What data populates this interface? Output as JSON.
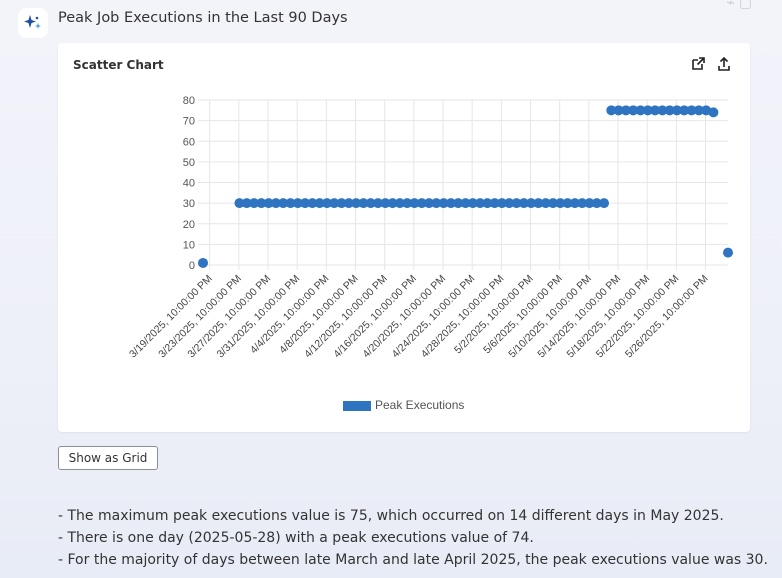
{
  "message": {
    "title": "Peak Job Executions in the Last 90 Days",
    "avatar_icon": "sparkle-icon"
  },
  "card": {
    "title": "Scatter Chart",
    "actions": [
      "open-external-icon",
      "share-upload-icon"
    ]
  },
  "show_grid_label": "Show as Grid",
  "notes": [
    "- The maximum peak executions value is 75, which occurred on 14 different days in May 2025.",
    "- There is one day (2025-05-28) with a peak executions value of 74.",
    "- For the majority of days between late March and late April 2025, the peak executions value was 30."
  ],
  "colors": {
    "point": "#2f74c0",
    "grid": "#e6e6e6",
    "accent": "#2b6cb0"
  },
  "chart_data": {
    "type": "scatter",
    "ylim": [
      0,
      80
    ],
    "yticks": [
      0,
      10,
      20,
      30,
      40,
      50,
      60,
      70,
      80
    ],
    "xlim": [
      "2025-03-19",
      "2025-05-30"
    ],
    "xtick_labels": [
      "3/19/2025, 10:00:00 PM",
      "3/23/2025, 10:00:00 PM",
      "3/27/2025, 10:00:00 PM",
      "3/31/2025, 10:00:00 PM",
      "4/4/2025, 10:00:00 PM",
      "4/8/2025, 10:00:00 PM",
      "4/12/2025, 10:00:00 PM",
      "4/16/2025, 10:00:00 PM",
      "4/20/2025, 10:00:00 PM",
      "4/24/2025, 10:00:00 PM",
      "4/28/2025, 10:00:00 PM",
      "5/2/2025, 10:00:00 PM",
      "5/6/2025, 10:00:00 PM",
      "5/10/2025, 10:00:00 PM",
      "5/14/2025, 10:00:00 PM",
      "5/18/2025, 10:00:00 PM",
      "5/22/2025, 10:00:00 PM",
      "5/26/2025, 10:00:00 PM"
    ],
    "legend": "bottom",
    "series": [
      {
        "name": "Peak Executions",
        "points": [
          {
            "x": "2025-03-19",
            "y": 1
          },
          {
            "x": "2025-03-24",
            "y": 30
          },
          {
            "x": "2025-03-25",
            "y": 30
          },
          {
            "x": "2025-03-26",
            "y": 30
          },
          {
            "x": "2025-03-27",
            "y": 30
          },
          {
            "x": "2025-03-28",
            "y": 30
          },
          {
            "x": "2025-03-29",
            "y": 30
          },
          {
            "x": "2025-03-30",
            "y": 30
          },
          {
            "x": "2025-03-31",
            "y": 30
          },
          {
            "x": "2025-04-01",
            "y": 30
          },
          {
            "x": "2025-04-02",
            "y": 30
          },
          {
            "x": "2025-04-03",
            "y": 30
          },
          {
            "x": "2025-04-04",
            "y": 30
          },
          {
            "x": "2025-04-05",
            "y": 30
          },
          {
            "x": "2025-04-06",
            "y": 30
          },
          {
            "x": "2025-04-07",
            "y": 30
          },
          {
            "x": "2025-04-08",
            "y": 30
          },
          {
            "x": "2025-04-09",
            "y": 30
          },
          {
            "x": "2025-04-10",
            "y": 30
          },
          {
            "x": "2025-04-11",
            "y": 30
          },
          {
            "x": "2025-04-12",
            "y": 30
          },
          {
            "x": "2025-04-13",
            "y": 30
          },
          {
            "x": "2025-04-14",
            "y": 30
          },
          {
            "x": "2025-04-15",
            "y": 30
          },
          {
            "x": "2025-04-16",
            "y": 30
          },
          {
            "x": "2025-04-17",
            "y": 30
          },
          {
            "x": "2025-04-18",
            "y": 30
          },
          {
            "x": "2025-04-19",
            "y": 30
          },
          {
            "x": "2025-04-20",
            "y": 30
          },
          {
            "x": "2025-04-21",
            "y": 30
          },
          {
            "x": "2025-04-22",
            "y": 30
          },
          {
            "x": "2025-04-23",
            "y": 30
          },
          {
            "x": "2025-04-24",
            "y": 30
          },
          {
            "x": "2025-04-25",
            "y": 30
          },
          {
            "x": "2025-04-26",
            "y": 30
          },
          {
            "x": "2025-04-27",
            "y": 30
          },
          {
            "x": "2025-04-28",
            "y": 30
          },
          {
            "x": "2025-04-29",
            "y": 30
          },
          {
            "x": "2025-04-30",
            "y": 30
          },
          {
            "x": "2025-05-01",
            "y": 30
          },
          {
            "x": "2025-05-02",
            "y": 30
          },
          {
            "x": "2025-05-03",
            "y": 30
          },
          {
            "x": "2025-05-04",
            "y": 30
          },
          {
            "x": "2025-05-05",
            "y": 30
          },
          {
            "x": "2025-05-06",
            "y": 30
          },
          {
            "x": "2025-05-07",
            "y": 30
          },
          {
            "x": "2025-05-08",
            "y": 30
          },
          {
            "x": "2025-05-09",
            "y": 30
          },
          {
            "x": "2025-05-10",
            "y": 30
          },
          {
            "x": "2025-05-11",
            "y": 30
          },
          {
            "x": "2025-05-12",
            "y": 30
          },
          {
            "x": "2025-05-13",
            "y": 30
          },
          {
            "x": "2025-05-14",
            "y": 75
          },
          {
            "x": "2025-05-15",
            "y": 75
          },
          {
            "x": "2025-05-16",
            "y": 75
          },
          {
            "x": "2025-05-17",
            "y": 75
          },
          {
            "x": "2025-05-18",
            "y": 75
          },
          {
            "x": "2025-05-19",
            "y": 75
          },
          {
            "x": "2025-05-20",
            "y": 75
          },
          {
            "x": "2025-05-21",
            "y": 75
          },
          {
            "x": "2025-05-22",
            "y": 75
          },
          {
            "x": "2025-05-23",
            "y": 75
          },
          {
            "x": "2025-05-24",
            "y": 75
          },
          {
            "x": "2025-05-25",
            "y": 75
          },
          {
            "x": "2025-05-26",
            "y": 75
          },
          {
            "x": "2025-05-27",
            "y": 75
          },
          {
            "x": "2025-05-28",
            "y": 74
          },
          {
            "x": "2025-05-30",
            "y": 6
          }
        ]
      }
    ]
  }
}
